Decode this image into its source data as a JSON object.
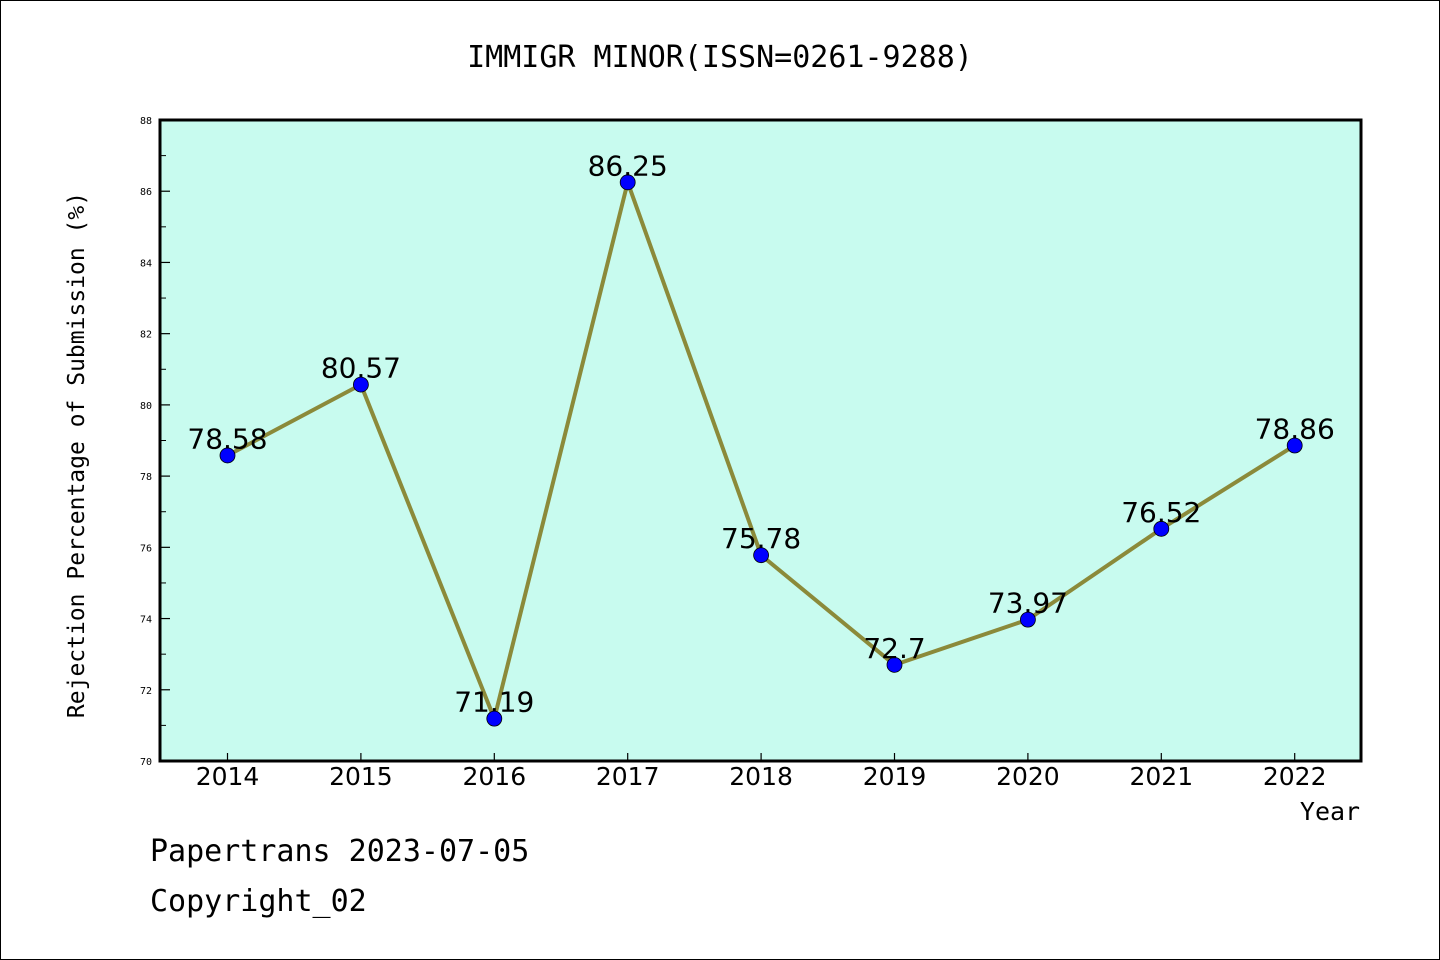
{
  "chart_data": {
    "type": "line",
    "title": "IMMIGR MINOR(ISSN=0261-9288)",
    "xlabel": "Year",
    "ylabel": "Rejection Percentage of Submission (%)",
    "x": [
      "2014",
      "2015",
      "2016",
      "2017",
      "2018",
      "2019",
      "2020",
      "2021",
      "2022"
    ],
    "series": [
      {
        "values": [
          78.58,
          80.57,
          71.19,
          86.25,
          75.78,
          72.7,
          73.97,
          76.52,
          78.86
        ],
        "labels": [
          "78.58",
          "80.57",
          "71.19",
          "86.25",
          "75.78",
          "72.7",
          "73.97",
          "76.52",
          "78.86"
        ],
        "line_color": "#8b8a3a",
        "marker_color": "#0000ff"
      }
    ],
    "ylim": [
      70,
      88
    ],
    "yticks": [
      "70",
      "72",
      "74",
      "76",
      "78",
      "80",
      "82",
      "84",
      "86",
      "88"
    ],
    "plot_background": "#c8fbef",
    "grid": false
  },
  "footer": {
    "source_line": "Papertrans 2023-07-05",
    "copyright_line": "Copyright_02"
  }
}
